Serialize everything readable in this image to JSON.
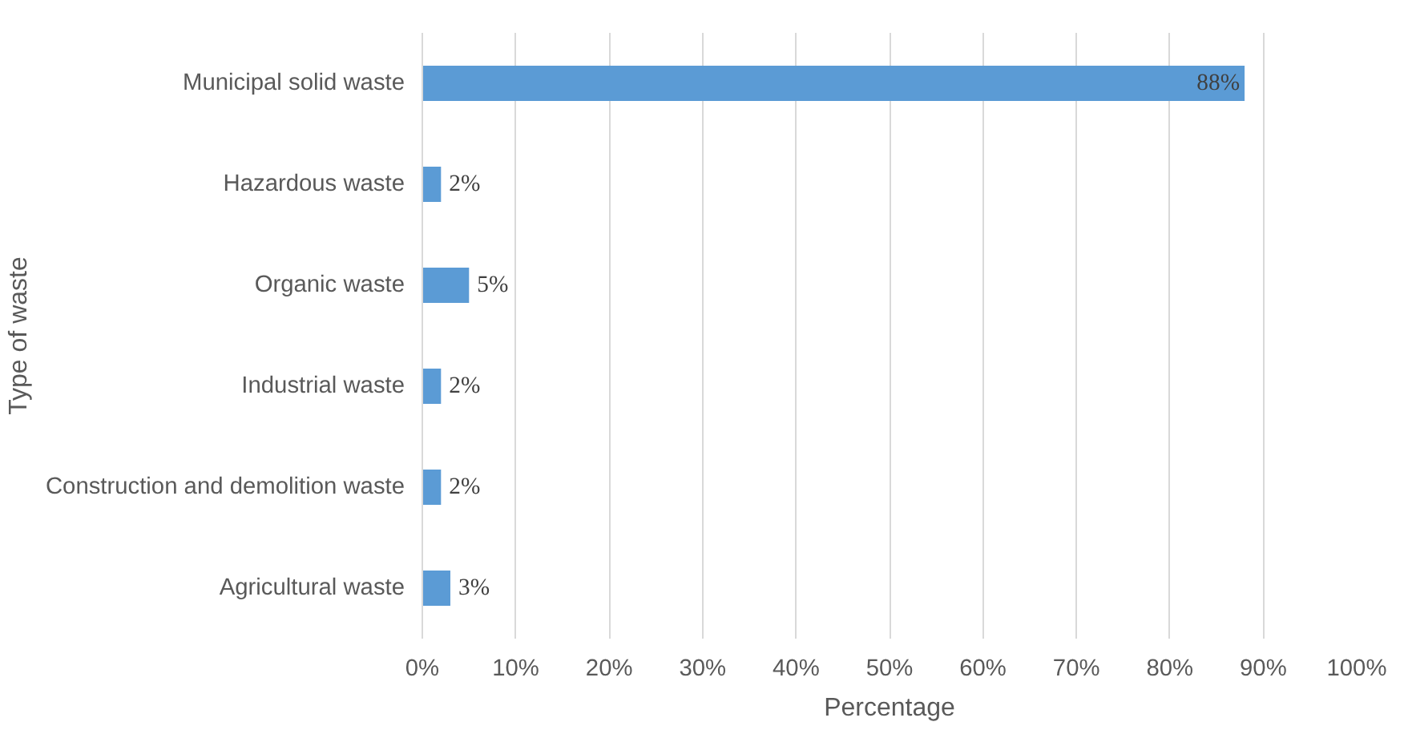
{
  "chart_data": {
    "type": "bar",
    "orientation": "horizontal",
    "xlabel": "Percentage",
    "ylabel": "Type of waste",
    "categories": [
      "Municipal solid waste",
      "Hazardous waste",
      "Organic waste",
      "Industrial waste",
      "Construction and demolition waste",
      "Agricultural waste"
    ],
    "values": [
      88,
      2,
      5,
      2,
      2,
      3
    ],
    "value_labels": [
      "88%",
      "2%",
      "5%",
      "2%",
      "2%",
      "3%"
    ],
    "color": "#5b9bd5",
    "xlim": [
      0,
      100
    ],
    "xticks": [
      {
        "value": 0,
        "label": "0%"
      },
      {
        "value": 10,
        "label": "10%"
      },
      {
        "value": 20,
        "label": "20%"
      },
      {
        "value": 30,
        "label": "30%"
      },
      {
        "value": 40,
        "label": "40%"
      },
      {
        "value": 50,
        "label": "50%"
      },
      {
        "value": 60,
        "label": "60%"
      },
      {
        "value": 70,
        "label": "70%"
      },
      {
        "value": 80,
        "label": "80%"
      },
      {
        "value": 90,
        "label": "90%"
      },
      {
        "value": 100,
        "label": "100%"
      }
    ],
    "grid": "x"
  }
}
